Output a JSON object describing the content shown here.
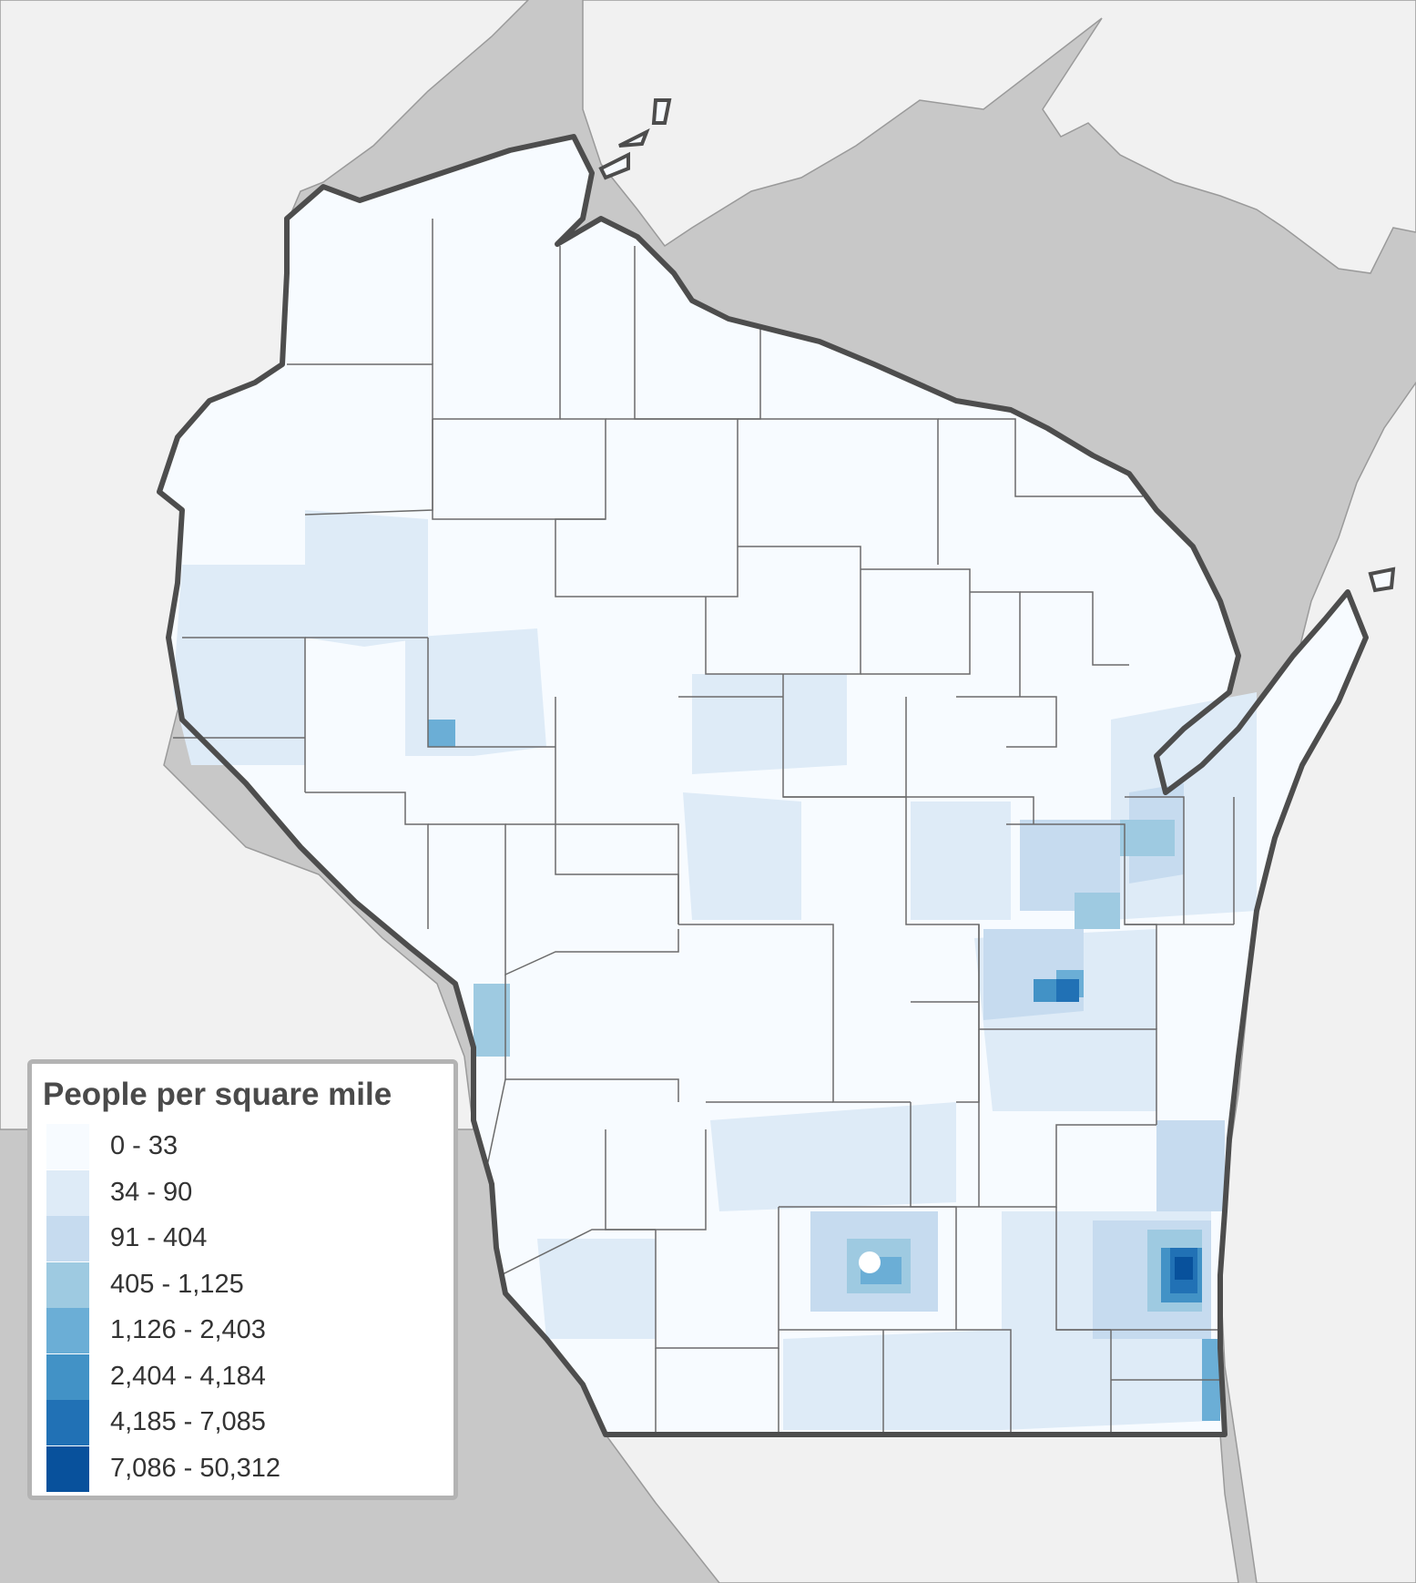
{
  "colors": {
    "background": "#c8c8c8",
    "water": "#c8c8c8",
    "neighbor_land": "#f1f1f1",
    "state_outline": "#4d4d4d",
    "county_lines": "#6b6b6b"
  },
  "legend": {
    "title": "People per square mile",
    "classes": [
      {
        "label": "0 - 33",
        "color": "#f7fbff"
      },
      {
        "label": "34 - 90",
        "color": "#deebf7"
      },
      {
        "label": "91 - 404",
        "color": "#c6dbef"
      },
      {
        "label": "405 - 1,125",
        "color": "#9ecae1"
      },
      {
        "label": "1,126 - 2,403",
        "color": "#6baed6"
      },
      {
        "label": "2,404 - 4,184",
        "color": "#4292c6"
      },
      {
        "label": "4,185 - 7,085",
        "color": "#2171b5"
      },
      {
        "label": "7,086 - 50,312",
        "color": "#08519c"
      }
    ]
  },
  "icons": {
    "urban-centers": "dot-cluster"
  }
}
